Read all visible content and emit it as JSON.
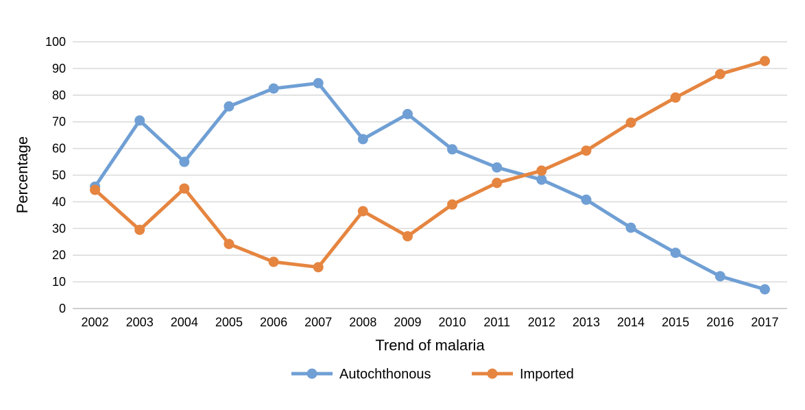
{
  "chart_data": {
    "type": "line",
    "title": "",
    "xlabel": "Trend of malaria",
    "ylabel": "Percentage",
    "ylim": [
      0,
      100
    ],
    "y_ticks": [
      "0",
      "10",
      "20",
      "30",
      "40",
      "50",
      "60",
      "70",
      "80",
      "90",
      "100"
    ],
    "grid": "horizontal",
    "legend_position": "bottom",
    "categories": [
      "2002",
      "2003",
      "2004",
      "2005",
      "2006",
      "2007",
      "2008",
      "2009",
      "2010",
      "2011",
      "2012",
      "2013",
      "2014",
      "2015",
      "2016",
      "2017"
    ],
    "series": [
      {
        "name": "Autochthonous",
        "color": "#6f9fd4",
        "values": [
          45.7,
          70.5,
          55,
          75.8,
          82.5,
          84.5,
          63.5,
          72.9,
          59.7,
          52.9,
          48.3,
          40.8,
          30.3,
          20.9,
          12.1,
          7.2
        ]
      },
      {
        "name": "Imported",
        "color": "#e58540",
        "values": [
          44.5,
          29.5,
          45,
          24.2,
          17.5,
          15.5,
          36.5,
          27.1,
          39,
          47.1,
          51.7,
          59.2,
          69.7,
          79.1,
          87.9,
          92.8
        ]
      }
    ]
  }
}
